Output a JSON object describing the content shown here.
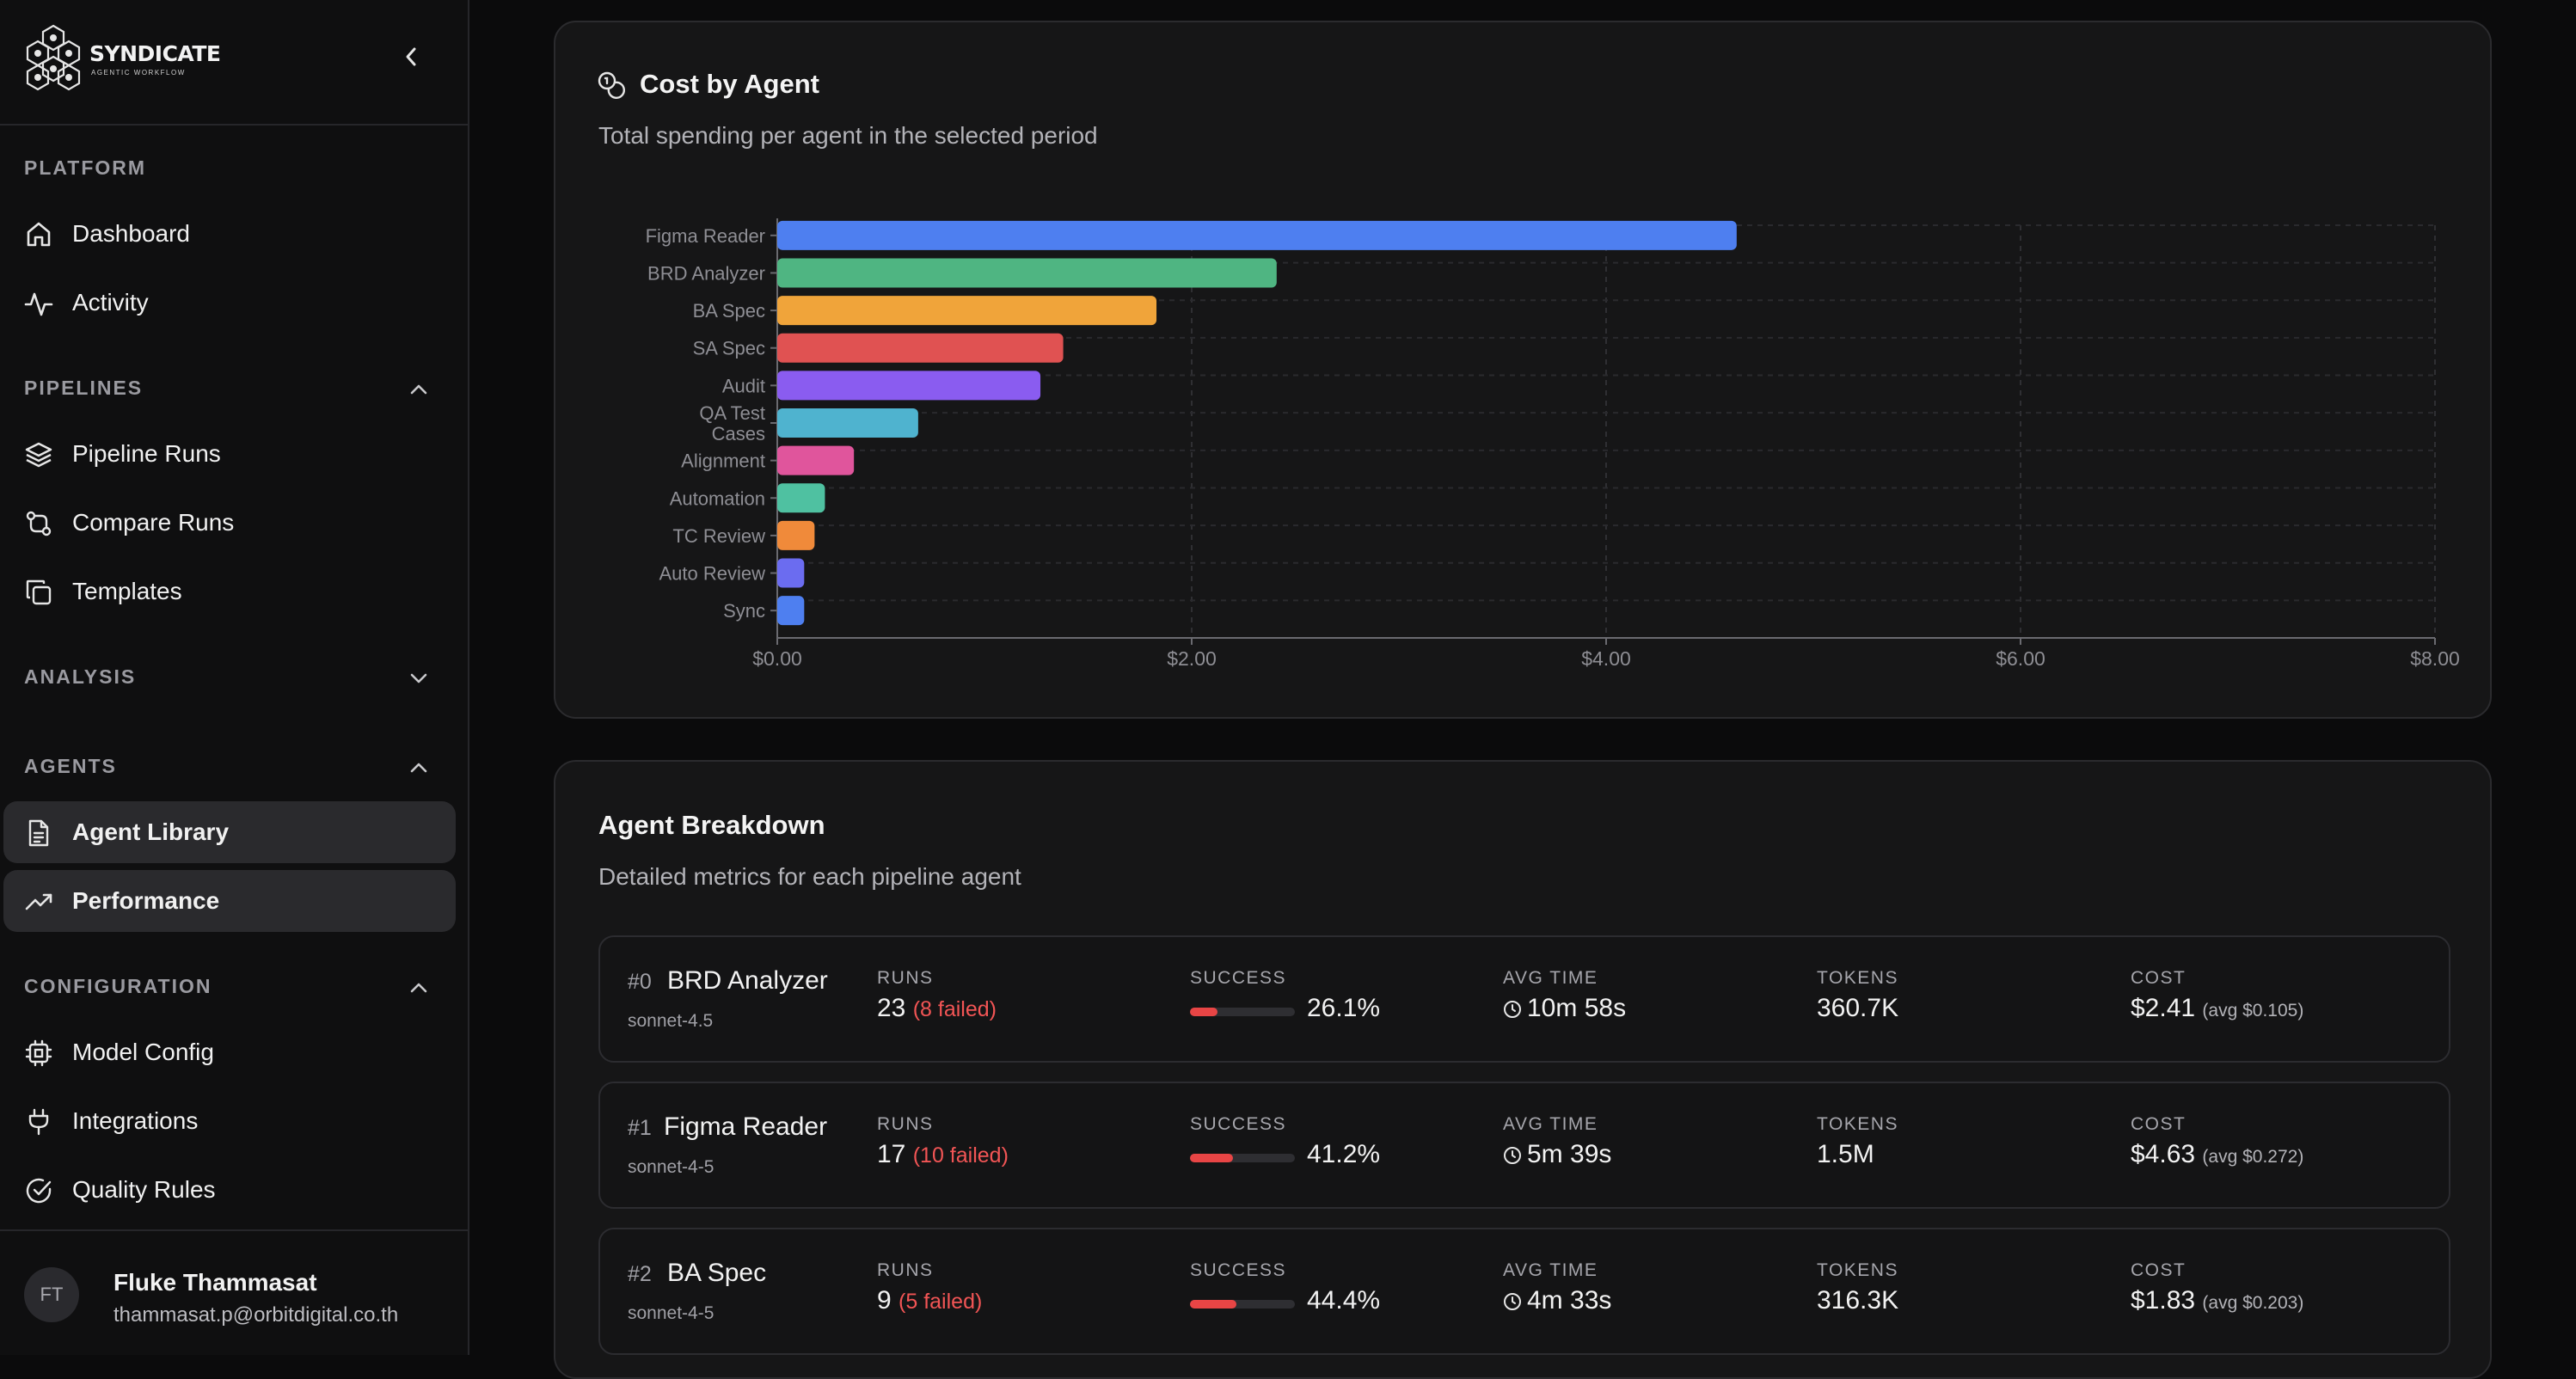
{
  "sidebar": {
    "brand": {
      "name": "SYNDICATE",
      "tagline": "AGENTIC WORKFLOW"
    },
    "sections": {
      "platform": "PLATFORM",
      "pipelines": "PIPELINES",
      "analysis": "ANALYSIS",
      "agents": "AGENTS",
      "configuration": "CONFIGURATION"
    },
    "items": {
      "dashboard": "Dashboard",
      "activity": "Activity",
      "pipeline_runs": "Pipeline Runs",
      "compare_runs": "Compare Runs",
      "templates": "Templates",
      "agent_library": "Agent Library",
      "performance": "Performance",
      "model_config": "Model Config",
      "integrations": "Integrations",
      "quality_rules": "Quality Rules"
    },
    "user": {
      "initials": "FT",
      "name": "Fluke Thammasat",
      "email": "thammasat.p@orbitdigital.co.th"
    }
  },
  "cost_card": {
    "title": "Cost by Agent",
    "subtitle": "Total spending per agent in the selected period"
  },
  "chart_data": {
    "type": "bar",
    "orientation": "horizontal",
    "title": "Cost by Agent",
    "xlabel": "",
    "ylabel": "",
    "xlim": [
      0,
      8
    ],
    "x_ticks": [
      "$0.00",
      "$2.00",
      "$4.00",
      "$6.00",
      "$8.00"
    ],
    "grid": true,
    "categories": [
      "Figma Reader",
      "BRD Analyzer",
      "BA Spec",
      "SA Spec",
      "Audit",
      "QA Test Cases",
      "Alignment",
      "Automation",
      "TC Review",
      "Auto Review",
      "Sync"
    ],
    "values": [
      4.63,
      2.41,
      1.83,
      1.38,
      1.27,
      0.68,
      0.37,
      0.23,
      0.18,
      0.13,
      0.13
    ],
    "colors": [
      "#4e7ff0",
      "#4fb582",
      "#f0a43a",
      "#e05252",
      "#8a5cf0",
      "#4fb3cf",
      "#e0559c",
      "#4fc1a1",
      "#f08a3a",
      "#6b6cf0",
      "#4e7ff0"
    ]
  },
  "breakdown": {
    "title": "Agent Breakdown",
    "subtitle": "Detailed metrics for each pipeline agent",
    "labels": {
      "runs": "RUNS",
      "success": "SUCCESS",
      "avg_time": "AVG TIME",
      "tokens": "TOKENS",
      "cost": "COST"
    },
    "rows": [
      {
        "rank": "#0",
        "name": "BRD Analyzer",
        "model": "sonnet-4.5",
        "runs": "23",
        "failed": "(8 failed)",
        "success": "26.1%",
        "success_frac": 0.261,
        "avg_time": "10m 58s",
        "tokens": "360.7K",
        "cost": "$2.41",
        "avg_cost": "(avg $0.105)"
      },
      {
        "rank": "#1",
        "name": "Figma Reader",
        "model": "sonnet-4-5",
        "runs": "17",
        "failed": "(10 failed)",
        "success": "41.2%",
        "success_frac": 0.412,
        "avg_time": "5m 39s",
        "tokens": "1.5M",
        "cost": "$4.63",
        "avg_cost": "(avg $0.272)"
      },
      {
        "rank": "#2",
        "name": "BA Spec",
        "model": "sonnet-4-5",
        "runs": "9",
        "failed": "(5 failed)",
        "success": "44.4%",
        "success_frac": 0.444,
        "avg_time": "4m 33s",
        "tokens": "316.3K",
        "cost": "$1.83",
        "avg_cost": "(avg $0.203)"
      }
    ]
  }
}
